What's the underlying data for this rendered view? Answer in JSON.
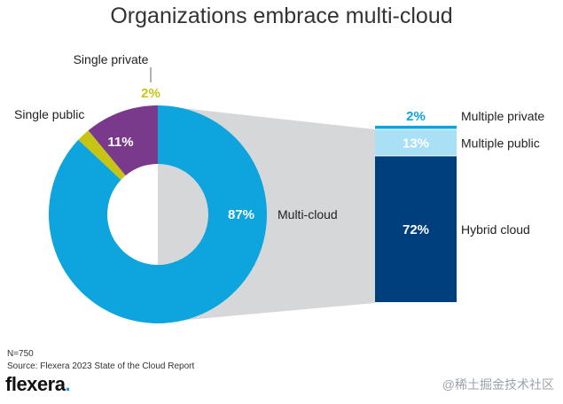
{
  "title": "Organizations embrace multi-cloud",
  "chart_data": [
    {
      "type": "pie",
      "variant": "donut",
      "slices": [
        {
          "name": "Multi-cloud",
          "value": 87,
          "label": "87%",
          "color": "#0ea4dd"
        },
        {
          "name": "Single private",
          "value": 2,
          "label": "2%",
          "color": "#c8c414"
        },
        {
          "name": "Single public",
          "value": 11,
          "label": "11%",
          "color": "#7a3a8c"
        }
      ]
    },
    {
      "type": "bar",
      "variant": "stacked-breakdown-of-multi-cloud",
      "unit": "%",
      "segments": [
        {
          "name": "Hybrid cloud",
          "value": 72,
          "label": "72%",
          "color": "#003f7d"
        },
        {
          "name": "Multiple public",
          "value": 13,
          "label": "13%",
          "color": "#a9e0f5"
        },
        {
          "name": "Multiple private",
          "value": 2,
          "label": "2%",
          "color": "#0ea4dd"
        }
      ]
    }
  ],
  "footer": {
    "n": "N=750",
    "source": "Source: Flexera 2023 State of the Cloud Report"
  },
  "logo": {
    "text": "flexera",
    "dot": "."
  },
  "watermark": "@稀土掘金技术社区"
}
